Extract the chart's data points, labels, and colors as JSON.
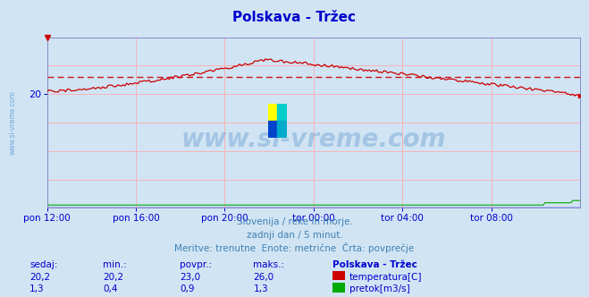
{
  "title": "Polskava - Tržec",
  "bg_color": "#d0e4f4",
  "plot_bg_color": "#d0e4f4",
  "x_labels": [
    "pon 12:00",
    "pon 16:00",
    "pon 20:00",
    "tor 00:00",
    "tor 04:00",
    "tor 08:00"
  ],
  "x_ticks_norm": [
    0.0,
    0.1667,
    0.3333,
    0.5,
    0.6667,
    0.8333
  ],
  "ylim": [
    0,
    30
  ],
  "yticks_show": [
    20
  ],
  "avg_line": 23.0,
  "temp_color": "#cc0000",
  "flow_color": "#00aa00",
  "avg_line_color": "#cc0000",
  "grid_color": "#ffaaaa",
  "axis_color": "#0000cc",
  "watermark": "www.si-vreme.com",
  "watermark_color": "#4080c0",
  "watermark_alpha": 0.3,
  "subtitle1": "Slovenija / reke in morje.",
  "subtitle2": "zadnji dan / 5 minut.",
  "subtitle3": "Meritve: trenutne  Enote: metrične  Črta: povprečje",
  "subtitle_color": "#4080b0",
  "table_header": [
    "sedaj:",
    "min.:",
    "povpr.:",
    "maks.:",
    "Polskava - Tržec"
  ],
  "table_temp": [
    "20,2",
    "20,2",
    "23,0",
    "26,0"
  ],
  "table_flow": [
    "1,3",
    "0,4",
    "0,9",
    "1,3"
  ],
  "label_temp": "temperatura[C]",
  "label_flow": "pretok[m3/s]",
  "ylabel_text": "www.si-vreme.com",
  "ylabel_color": "#4488cc",
  "title_color": "#0000cc"
}
